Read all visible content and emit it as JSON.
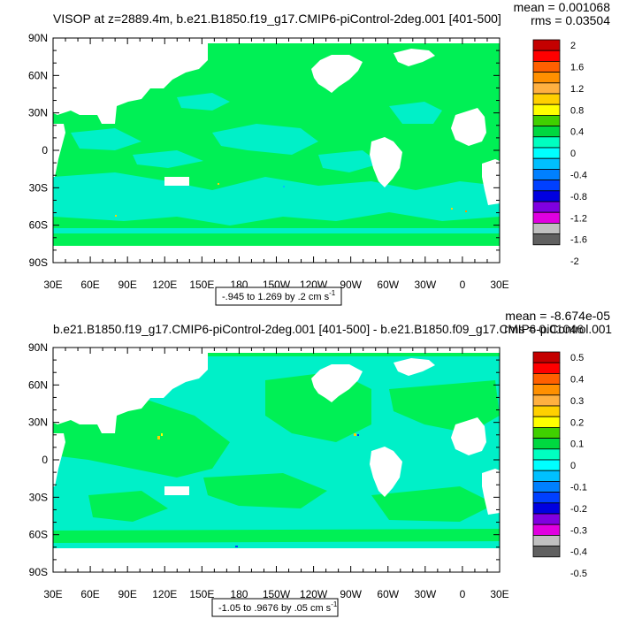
{
  "chart_data": [
    {
      "type": "heatmap",
      "title": "VISOP at z=2889.4m, b.e21.B1850.f19_g17.CMIP6-piControl-2deg.001 [401-500]",
      "mean_text": "mean = 0.001068",
      "rms_text": "rms = 0.03504",
      "range_text": "-.945 to 1.269 by .2 cm s",
      "range_units_exp": "-1",
      "y_ticks": [
        "90N",
        "60N",
        "30N",
        "0",
        "30S",
        "60S",
        "90S"
      ],
      "x_ticks": [
        "30E",
        "60E",
        "90E",
        "120E",
        "150E",
        "180",
        "150W",
        "120W",
        "90W",
        "60W",
        "30W",
        "0",
        "30E"
      ],
      "legend_labels": [
        "2",
        "1.6",
        "1.2",
        "0.8",
        "0.4",
        "0",
        "-0.4",
        "-0.8",
        "-1.2",
        "-1.6",
        "-2"
      ],
      "legend_colors": [
        "#c40000",
        "#ff0000",
        "#ff6000",
        "#ff9000",
        "#ffb040",
        "#ffd000",
        "#ffff00",
        "#40d000",
        "#00d840",
        "#00ffc0",
        "#00ffff",
        "#00c0ff",
        "#0080ff",
        "#0040ff",
        "#0000e0",
        "#8000e0",
        "#e000e0",
        "#c0c0c0",
        "#606060"
      ],
      "field_colors": {
        "dominant": "#00f055",
        "secondary": "#00f0c8",
        "land": "#ffffff"
      }
    },
    {
      "type": "heatmap",
      "title": "b.e21.B1850.f19_g17.CMIP6-piControl-2deg.001 [401-500] - b.e21.B1850.f09_g17.CMIP6-piControl.001",
      "mean_text": "mean = -8.674e-05",
      "rms_text": "rms = 0.01046",
      "range_text": "-1.05 to .9676 by .05 cm s",
      "range_units_exp": "-1",
      "y_ticks": [
        "90N",
        "60N",
        "30N",
        "0",
        "30S",
        "60S",
        "90S"
      ],
      "x_ticks": [
        "30E",
        "60E",
        "90E",
        "120E",
        "150E",
        "180",
        "150W",
        "120W",
        "90W",
        "60W",
        "30W",
        "0",
        "30E"
      ],
      "legend_labels": [
        "0.5",
        "0.4",
        "0.3",
        "0.2",
        "0.1",
        "0",
        "-0.1",
        "-0.2",
        "-0.3",
        "-0.4",
        "-0.5"
      ],
      "legend_colors": [
        "#c40000",
        "#ff0000",
        "#ff6000",
        "#ff9000",
        "#ffb040",
        "#ffd000",
        "#ffff00",
        "#40d000",
        "#00d840",
        "#00ffc0",
        "#00ffff",
        "#00c0ff",
        "#0080ff",
        "#0040ff",
        "#0000e0",
        "#8000e0",
        "#e000e0",
        "#c0c0c0",
        "#606060"
      ],
      "field_colors": {
        "dominant": "#00f0c8",
        "secondary": "#00f055",
        "land": "#ffffff"
      }
    }
  ]
}
